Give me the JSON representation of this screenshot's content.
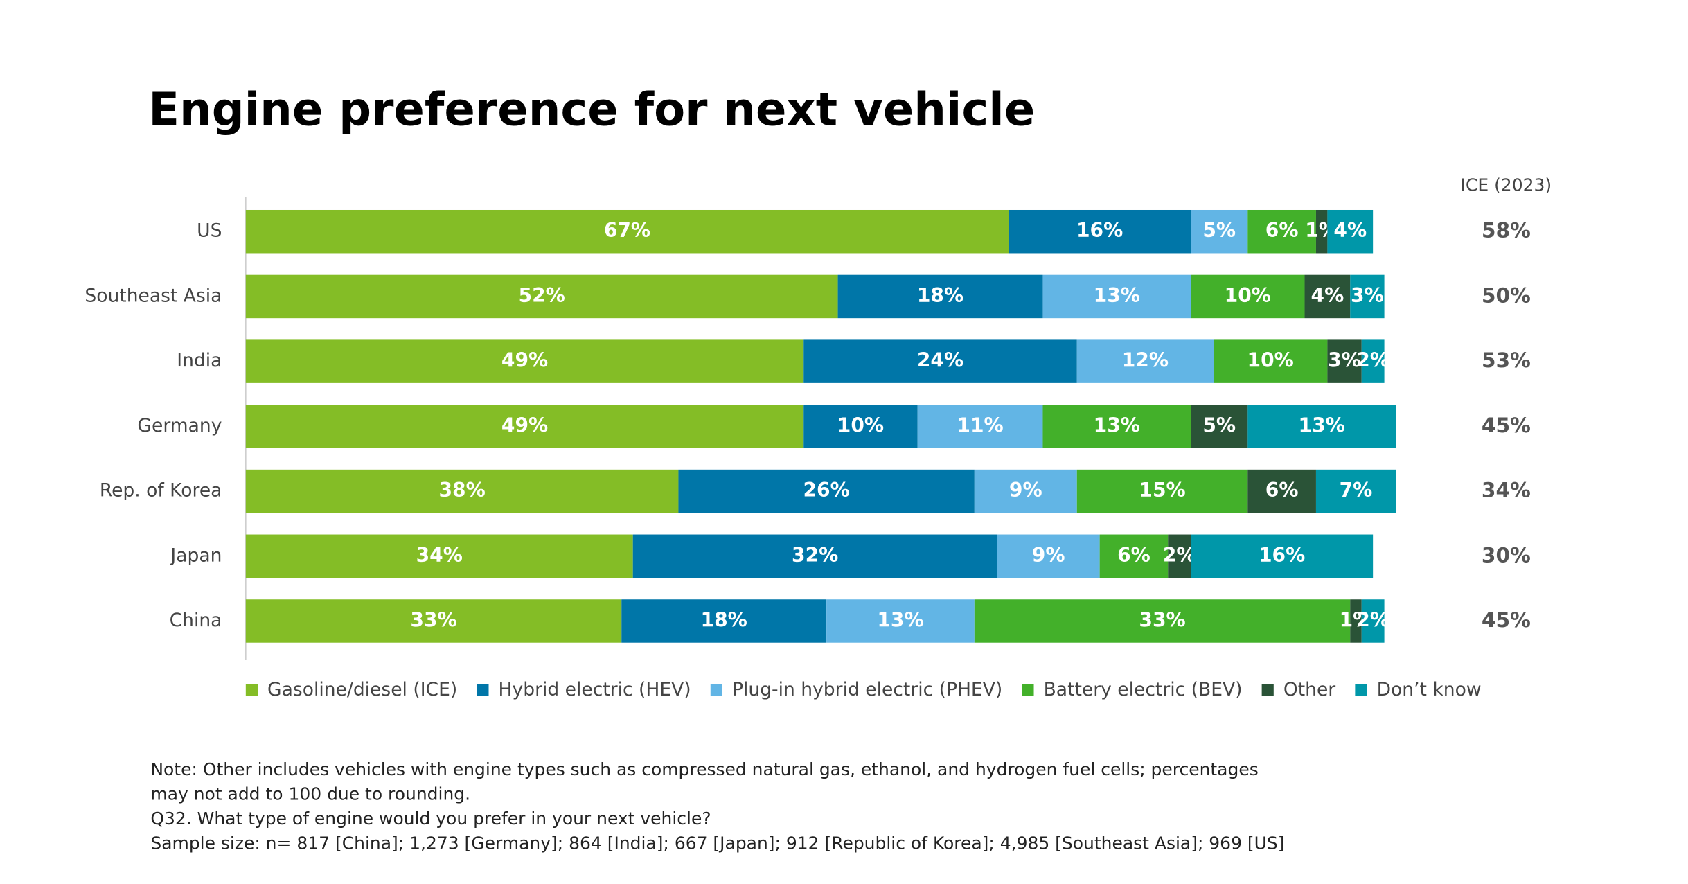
{
  "chart_data": {
    "type": "stacked-bar-horizontal",
    "title": "Engine preference for next vehicle",
    "categories": [
      "US",
      "Southeast Asia",
      "India",
      "Germany",
      "Rep. of Korea",
      "Japan",
      "China"
    ],
    "series": [
      {
        "name": "Gasoline/diesel (ICE)",
        "color": "#84bd26",
        "values": [
          67,
          52,
          49,
          49,
          38,
          34,
          33
        ],
        "value_labels": [
          "67%",
          "52%",
          "49%",
          "49%",
          "38%",
          "34%",
          "33%"
        ]
      },
      {
        "name": "Hybrid electric (HEV)",
        "color": "#0076a8",
        "values": [
          16,
          18,
          24,
          10,
          26,
          32,
          18
        ],
        "value_labels": [
          "16%",
          "18%",
          "24%",
          "10%",
          "26%",
          "32%",
          "18%"
        ]
      },
      {
        "name": "Plug-in hybrid electric (PHEV)",
        "color": "#62b5e5",
        "values": [
          5,
          13,
          12,
          11,
          9,
          9,
          13
        ],
        "value_labels": [
          "5%",
          "13%",
          "12%",
          "11%",
          "9%",
          "9%",
          "13%"
        ]
      },
      {
        "name": "Battery electric (BEV)",
        "color": "#43b02a",
        "values": [
          6,
          10,
          10,
          13,
          15,
          6,
          33
        ],
        "value_labels": [
          "6%",
          "10%",
          "10%",
          "13%",
          "15%",
          "6%",
          "33%"
        ]
      },
      {
        "name": "Other",
        "color": "#2a5337",
        "values": [
          1,
          4,
          3,
          5,
          6,
          2,
          1
        ],
        "value_labels": [
          "1%",
          "4%",
          "3%",
          "5%",
          "6%",
          "2%",
          "1%"
        ]
      },
      {
        "name": "Don’t know",
        "color": "#0097a9",
        "values": [
          4,
          3,
          2,
          13,
          7,
          16,
          2
        ],
        "value_labels": [
          "4%",
          "3%",
          "2%",
          "13%",
          "7%",
          "16%",
          "2%"
        ]
      }
    ],
    "side_column": {
      "header": "ICE (2023)",
      "values": [
        58,
        50,
        53,
        45,
        34,
        30,
        45
      ],
      "value_labels": [
        "58%",
        "50%",
        "53%",
        "45%",
        "34%",
        "30%",
        "45%"
      ]
    },
    "legend": "bottom",
    "notes": [
      "Note: Other includes vehicles with engine types such as compressed natural gas, ethanol, and hydrogen fuel cells; percentages",
      "may not add to 100 due to rounding.",
      "Q32. What type of engine would you prefer in your next vehicle?",
      "Sample size: n= 817 [China]; 1,273 [Germany]; 864 [India]; 667 [Japan]; 912 [Republic of Korea]; 4,985 [Southeast Asia]; 969 [US]"
    ]
  }
}
